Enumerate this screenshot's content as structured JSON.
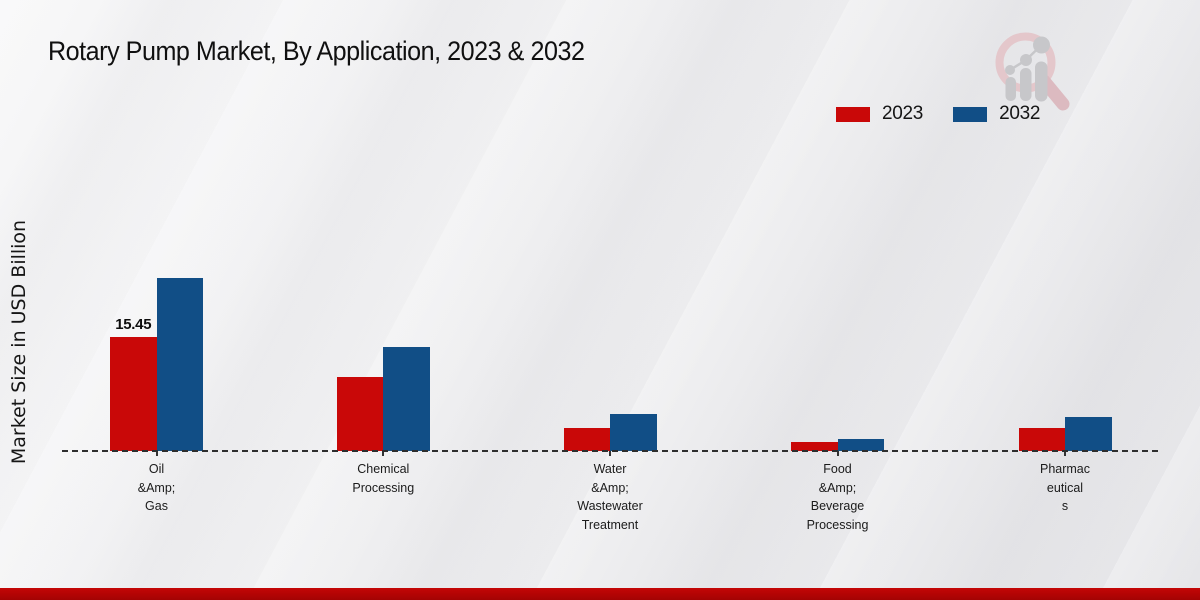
{
  "header": {
    "title": "Rotary Pump Market, By Application, 2023 & 2032"
  },
  "chart_data": {
    "type": "bar",
    "title": "Rotary Pump Market, By Application, 2023 & 2032",
    "ylabel": "Market Size in USD Billion",
    "xlabel": "",
    "categories": [
      "Oil\n&Amp;\nGas",
      "Chemical\nProcessing",
      "Water\n&Amp;\nWastewater\nTreatment",
      "Food\n&Amp;\nBeverage\nProcessing",
      "Pharmac\neutical\ns"
    ],
    "series": [
      {
        "name": "2023",
        "color": "#c90808",
        "values": [
          15.45,
          10.05,
          3.13,
          1.24,
          3.13
        ]
      },
      {
        "name": "2032",
        "color": "#114e86",
        "values": [
          23.28,
          14.1,
          5.02,
          1.65,
          4.56
        ]
      }
    ],
    "data_labels": [
      {
        "series_index": 0,
        "category_index": 0,
        "text": "15.45"
      }
    ],
    "ylim": [
      0,
      25
    ],
    "grid": false,
    "legend_position": "top-right",
    "baseline_style": "dashed",
    "unit": "USD Billion"
  },
  "branding": {
    "logo_name": "magnifier-bar-chart-logo",
    "footer_bar_color": "#bf0505"
  }
}
